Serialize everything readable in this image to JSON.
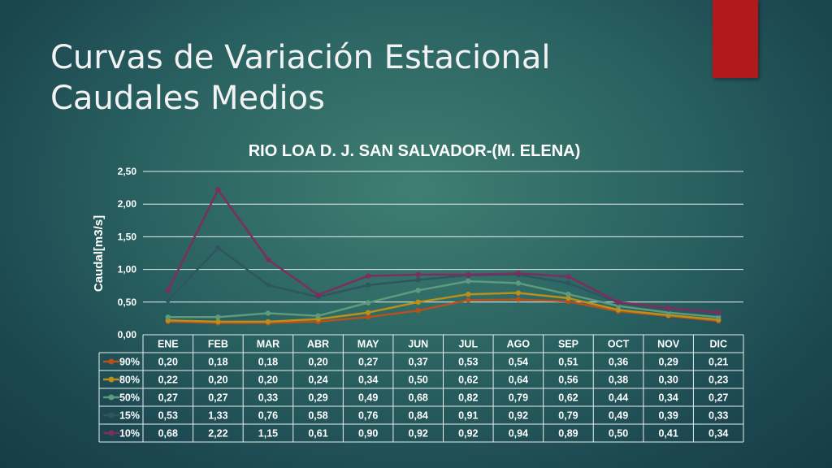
{
  "slide": {
    "title_line1": "Curvas de Variación Estacional",
    "title_line2": "Caudales Medios",
    "accent_color": "#b3181b"
  },
  "chart_data": {
    "type": "line",
    "title": "RIO LOA D. J. SAN SALVADOR-(M. ELENA)",
    "ylabel": "Caudal[m3/s]",
    "xlabel": "",
    "ylim": [
      0,
      2.5
    ],
    "yticks": [
      "0,00",
      "0,50",
      "1,00",
      "1,50",
      "2,00",
      "2,50"
    ],
    "grid": true,
    "legend": "data-table",
    "categories": [
      "ENE",
      "FEB",
      "MAR",
      "ABR",
      "MAY",
      "JUN",
      "JUL",
      "AGO",
      "SEP",
      "OCT",
      "NOV",
      "DIC"
    ],
    "series": [
      {
        "name": "90%",
        "color": "#b5501f",
        "values": [
          0.2,
          0.18,
          0.18,
          0.2,
          0.27,
          0.37,
          0.53,
          0.54,
          0.51,
          0.36,
          0.29,
          0.21
        ],
        "labels": [
          "0,20",
          "0,18",
          "0,18",
          "0,20",
          "0,27",
          "0,37",
          "0,53",
          "0,54",
          "0,51",
          "0,36",
          "0,29",
          "0,21"
        ]
      },
      {
        "name": "80%",
        "color": "#b8901a",
        "values": [
          0.22,
          0.2,
          0.2,
          0.24,
          0.34,
          0.5,
          0.62,
          0.64,
          0.56,
          0.38,
          0.3,
          0.23
        ],
        "labels": [
          "0,22",
          "0,20",
          "0,20",
          "0,24",
          "0,34",
          "0,50",
          "0,62",
          "0,64",
          "0,56",
          "0,38",
          "0,30",
          "0,23"
        ]
      },
      {
        "name": "50%",
        "color": "#5e9a7c",
        "values": [
          0.27,
          0.27,
          0.33,
          0.29,
          0.49,
          0.68,
          0.82,
          0.79,
          0.62,
          0.44,
          0.34,
          0.27
        ],
        "labels": [
          "0,27",
          "0,27",
          "0,33",
          "0,29",
          "0,49",
          "0,68",
          "0,82",
          "0,79",
          "0,62",
          "0,44",
          "0,34",
          "0,27"
        ]
      },
      {
        "name": "15%",
        "color": "#2e5560",
        "values": [
          0.53,
          1.33,
          0.76,
          0.58,
          0.76,
          0.84,
          0.91,
          0.92,
          0.79,
          0.49,
          0.39,
          0.33
        ],
        "labels": [
          "0,53",
          "1,33",
          "0,76",
          "0,58",
          "0,76",
          "0,84",
          "0,91",
          "0,92",
          "0,79",
          "0,49",
          "0,39",
          "0,33"
        ]
      },
      {
        "name": "10%",
        "color": "#7d2e5e",
        "values": [
          0.68,
          2.22,
          1.15,
          0.61,
          0.9,
          0.92,
          0.92,
          0.94,
          0.89,
          0.5,
          0.41,
          0.34
        ],
        "labels": [
          "0,68",
          "2,22",
          "1,15",
          "0,61",
          "0,90",
          "0,92",
          "0,92",
          "0,94",
          "0,89",
          "0,50",
          "0,41",
          "0,34"
        ]
      }
    ]
  }
}
